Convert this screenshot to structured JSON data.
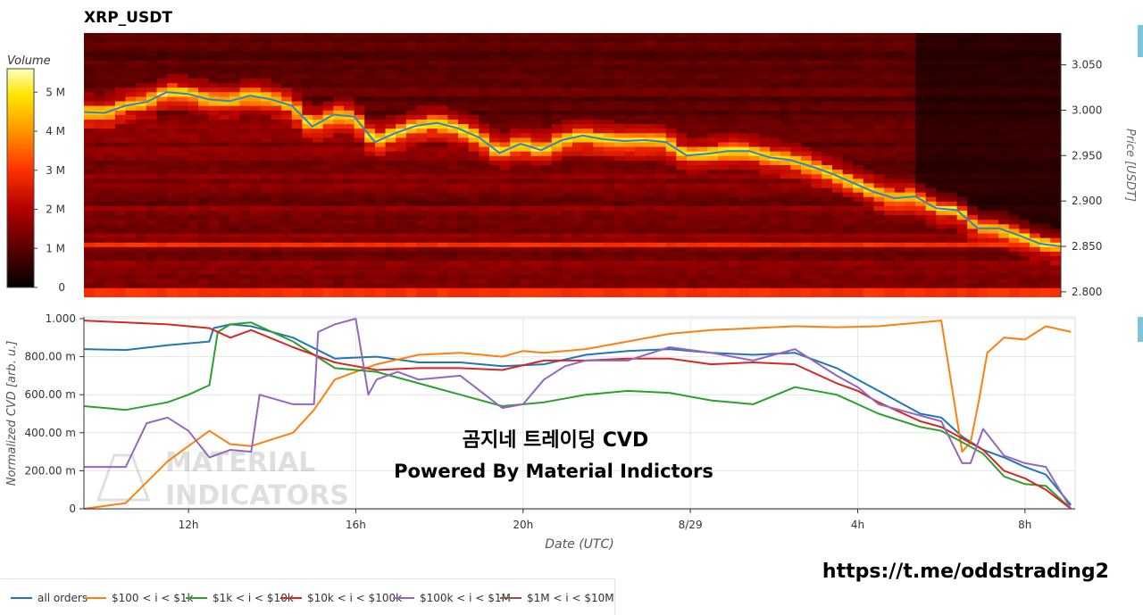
{
  "header": {
    "title": "XRP_USDT"
  },
  "link_text": "https://t.me/oddstrading2",
  "watermark": {
    "line1": "MATERIAL",
    "line2": "INDICATORS"
  },
  "overlay": {
    "line1": "곰지네 트레이딩 CVD",
    "line2": "Powered By Material Indictors"
  },
  "chart_data": [
    {
      "type": "heatmap",
      "title": "XRP_USDT",
      "ylabel": "Price [USDT]",
      "ylim": [
        2.794,
        3.085
      ],
      "y_ticks": [
        2.8,
        2.85,
        2.9,
        2.95,
        3.0,
        3.05
      ],
      "y_tick_labels": [
        "2.800",
        "2.850",
        "2.900",
        "2.950",
        "3.000",
        "3.050"
      ],
      "colorbar": {
        "label": "Volume",
        "ticks": [
          0,
          1,
          2,
          3,
          4,
          5
        ],
        "tick_labels": [
          "0",
          "1 M",
          "2 M",
          "3 M",
          "4 M",
          "5 M"
        ],
        "range": [
          0,
          5.6
        ],
        "colors": [
          "#000000",
          "#5a0000",
          "#b30000",
          "#ff3300",
          "#ff9900",
          "#ffe600",
          "#ffffc0"
        ]
      },
      "price_line": {
        "color": "#2f86c4",
        "t": [
          0,
          0.5,
          1,
          1.5,
          2,
          2.5,
          3,
          3.5,
          4,
          4.5,
          5,
          5.5,
          6,
          6.5,
          7,
          7.5,
          8,
          8.5,
          9,
          9.5,
          10,
          10.5,
          11,
          11.5,
          12,
          12.5,
          13,
          13.5,
          14,
          14.5,
          15,
          15.5,
          16,
          16.5,
          17,
          17.5,
          18,
          18.5,
          19,
          19.5,
          20,
          20.5,
          21,
          21.5,
          22,
          22.5,
          23,
          23.5
        ],
        "price": [
          2.998,
          2.997,
          3.005,
          3.009,
          3.02,
          3.018,
          3.012,
          3.01,
          3.016,
          3.012,
          3.005,
          2.982,
          2.995,
          2.993,
          2.965,
          2.975,
          2.983,
          2.986,
          2.98,
          2.97,
          2.953,
          2.963,
          2.956,
          2.967,
          2.972,
          2.968,
          2.966,
          2.967,
          2.965,
          2.95,
          2.952,
          2.955,
          2.955,
          2.948,
          2.945,
          2.938,
          2.93,
          2.92,
          2.91,
          2.903,
          2.905,
          2.892,
          2.89,
          2.87,
          2.87,
          2.862,
          2.853,
          2.85
        ]
      },
      "bright_bands": [
        {
          "t_start": 0,
          "t_end": 5.5,
          "price": 3.005
        },
        {
          "t_start": 6,
          "t_end": 12,
          "price": 2.99
        },
        {
          "t_start": 12,
          "t_end": 19,
          "price": 2.962
        },
        {
          "t_start": 19,
          "t_end": 23.5,
          "price": 2.9
        },
        {
          "t_start": 21.5,
          "t_end": 23.5,
          "price": 2.862
        }
      ],
      "strong_levels": [
        2.851,
        2.8
      ]
    },
    {
      "type": "line",
      "xlabel": "Date (UTC)",
      "ylabel": "Normalized CVD [arb. u.]",
      "ylim": [
        0,
        1
      ],
      "y_ticks": [
        0,
        0.2,
        0.4,
        0.6,
        0.8,
        1.0
      ],
      "y_tick_labels": [
        "0",
        "200.00 m",
        "400.00 m",
        "600.00 m",
        "800.00 m",
        "1.000"
      ],
      "xlim": [
        0,
        23.7
      ],
      "x_ticks": [
        2.5,
        6.5,
        10.5,
        14.5,
        18.5,
        22.5
      ],
      "x_tick_labels": [
        "12h",
        "16h",
        "20h",
        "8/29",
        "4h",
        "8h"
      ],
      "grid": true,
      "legend_position": "bottom",
      "series": [
        {
          "name": "all orders",
          "color": "#1f77b4",
          "x": [
            0,
            1,
            2,
            3,
            3.1,
            3.5,
            4,
            5,
            6,
            7,
            8,
            9,
            10,
            11,
            12,
            13,
            14,
            15,
            16,
            17,
            18,
            18.5,
            19,
            20,
            20.5,
            21,
            21.5,
            22,
            22.5,
            23,
            23.6
          ],
          "y": [
            0.84,
            0.835,
            0.86,
            0.88,
            0.95,
            0.97,
            0.96,
            0.9,
            0.79,
            0.8,
            0.77,
            0.77,
            0.75,
            0.76,
            0.81,
            0.83,
            0.84,
            0.82,
            0.81,
            0.82,
            0.74,
            0.68,
            0.62,
            0.5,
            0.48,
            0.38,
            0.31,
            0.27,
            0.22,
            0.18,
            0.02
          ]
        },
        {
          "name": "$100 < i < $1k",
          "color": "#ff7f0e",
          "x": [
            0,
            1,
            1.5,
            2,
            2.5,
            3,
            3.5,
            4,
            5,
            5.5,
            6,
            6.5,
            7,
            8,
            9,
            10,
            10.5,
            11,
            12,
            13,
            14,
            15,
            16,
            17,
            18,
            19,
            20,
            20.5,
            21,
            21.2,
            21.4,
            21.6,
            22,
            22.5,
            23,
            23.6
          ],
          "y": [
            0,
            0.03,
            0.14,
            0.25,
            0.33,
            0.41,
            0.34,
            0.33,
            0.4,
            0.52,
            0.68,
            0.72,
            0.76,
            0.81,
            0.82,
            0.8,
            0.83,
            0.82,
            0.84,
            0.88,
            0.92,
            0.94,
            0.95,
            0.96,
            0.955,
            0.96,
            0.98,
            0.99,
            0.3,
            0.35,
            0.57,
            0.82,
            0.9,
            0.89,
            0.96,
            0.93
          ]
        },
        {
          "name": "$1k < i < $10k",
          "color": "#2ca02c",
          "x": [
            0,
            1,
            2,
            2.5,
            3,
            3.2,
            3.5,
            4,
            5,
            6,
            7,
            8,
            9,
            10,
            11,
            12,
            13,
            14,
            15,
            16,
            17,
            18,
            18.5,
            19,
            20,
            20.5,
            21,
            21.5,
            22,
            22.5,
            23,
            23.6
          ],
          "y": [
            0.54,
            0.52,
            0.56,
            0.6,
            0.65,
            0.93,
            0.97,
            0.98,
            0.88,
            0.74,
            0.72,
            0.66,
            0.6,
            0.54,
            0.56,
            0.6,
            0.62,
            0.61,
            0.57,
            0.55,
            0.64,
            0.6,
            0.55,
            0.5,
            0.43,
            0.41,
            0.35,
            0.29,
            0.17,
            0.13,
            0.12,
            0.0
          ]
        },
        {
          "name": "$10k < i < $100k",
          "color": "#d62728",
          "x": [
            0,
            1,
            2,
            3,
            3.5,
            4,
            5,
            6,
            7,
            8,
            9,
            10,
            11,
            12,
            13,
            14,
            15,
            16,
            17,
            18,
            18.5,
            19,
            20,
            20.5,
            21,
            21.5,
            22,
            22.5,
            23,
            23.6
          ],
          "y": [
            0.99,
            0.98,
            0.97,
            0.95,
            0.9,
            0.94,
            0.85,
            0.77,
            0.73,
            0.74,
            0.74,
            0.73,
            0.78,
            0.78,
            0.79,
            0.79,
            0.76,
            0.77,
            0.76,
            0.66,
            0.62,
            0.56,
            0.46,
            0.43,
            0.37,
            0.31,
            0.2,
            0.16,
            0.1,
            0.0
          ]
        },
        {
          "name": "$100k < i < $1M",
          "color": "#9467bd",
          "x": [
            0,
            1,
            1.5,
            2,
            2.5,
            3,
            3.5,
            4,
            4.2,
            5,
            5.5,
            5.6,
            6,
            6.5,
            6.8,
            7,
            7.5,
            8,
            9,
            10,
            10.5,
            11,
            11.5,
            12,
            13,
            14,
            15,
            16,
            17,
            18,
            18.5,
            19,
            20,
            20.5,
            21,
            21.2,
            21.5,
            22,
            22.5,
            23,
            23.6
          ],
          "y": [
            0.22,
            0.22,
            0.45,
            0.48,
            0.41,
            0.27,
            0.31,
            0.3,
            0.6,
            0.55,
            0.55,
            0.93,
            0.97,
            1.0,
            0.6,
            0.68,
            0.72,
            0.68,
            0.7,
            0.53,
            0.55,
            0.68,
            0.75,
            0.78,
            0.78,
            0.85,
            0.82,
            0.78,
            0.84,
            0.7,
            0.64,
            0.55,
            0.49,
            0.46,
            0.24,
            0.24,
            0.42,
            0.28,
            0.24,
            0.22,
            0.0
          ]
        },
        {
          "name": "$1M < i < $10M",
          "color": "#8c564b",
          "x": [],
          "y": []
        }
      ]
    }
  ]
}
